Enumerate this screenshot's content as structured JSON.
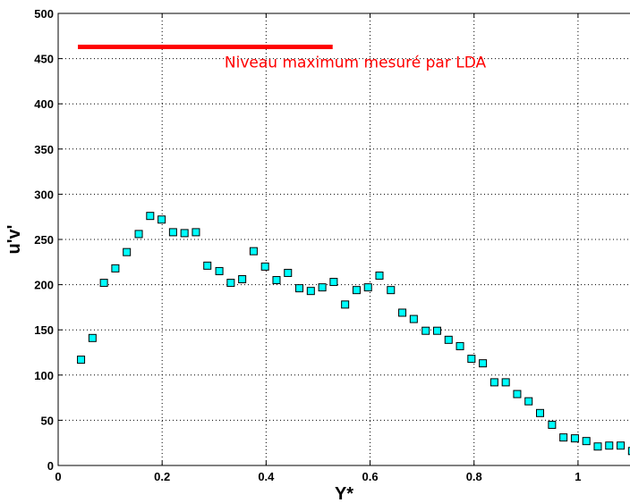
{
  "chart_data": {
    "type": "scatter",
    "title": "",
    "xlabel": "Y*",
    "ylabel": "u'v'",
    "xlim": [
      0,
      1.1
    ],
    "ylim": [
      0,
      500
    ],
    "xticks": [
      0,
      0.2,
      0.4,
      0.6,
      0.8,
      1
    ],
    "xtick_labels": [
      "0",
      "0.2",
      "0.4",
      "0.6",
      "0.8",
      "1"
    ],
    "yticks": [
      0,
      50,
      100,
      150,
      200,
      250,
      300,
      350,
      400,
      450,
      500
    ],
    "ytick_labels": [
      "0",
      "50",
      "100",
      "150",
      "200",
      "250",
      "300",
      "350",
      "400",
      "450",
      "500"
    ],
    "grid": true,
    "grid_style": "dotted",
    "marker": {
      "shape": "square",
      "fill": "#00FFFF",
      "edge": "#000000"
    },
    "series": [
      {
        "x": [
          0.044,
          0.066,
          0.088,
          0.11,
          0.132,
          0.155,
          0.177,
          0.199,
          0.221,
          0.243,
          0.265,
          0.287,
          0.31,
          0.332,
          0.354,
          0.376,
          0.398,
          0.42,
          0.442,
          0.464,
          0.486,
          0.508,
          0.53,
          0.552,
          0.574,
          0.596,
          0.618,
          0.64,
          0.662,
          0.684,
          0.707,
          0.729,
          0.751,
          0.773,
          0.795,
          0.817,
          0.839,
          0.861,
          0.883,
          0.905,
          0.927,
          0.95,
          0.972,
          0.994,
          1.016,
          1.038,
          1.06,
          1.082,
          1.104
        ],
        "values": [
          117,
          141,
          202,
          218,
          236,
          256,
          276,
          272,
          258,
          257,
          258,
          221,
          215,
          202,
          206,
          237,
          220,
          205,
          213,
          196,
          193,
          197,
          203,
          178,
          194,
          197,
          210,
          194,
          169,
          162,
          149,
          149,
          139,
          132,
          118,
          113,
          92,
          92,
          79,
          71,
          58,
          45,
          31,
          30,
          27,
          21,
          22,
          22,
          16
        ]
      }
    ],
    "annotations": [
      {
        "text": "Niveau maximum mesuré par LDA",
        "color": "#FF0000",
        "x": 0.32,
        "y": 440
      }
    ],
    "reference_lines": [
      {
        "orientation": "horizontal",
        "y": 463,
        "x_range": [
          0.038,
          0.528
        ],
        "color": "#FF0000"
      }
    ]
  }
}
